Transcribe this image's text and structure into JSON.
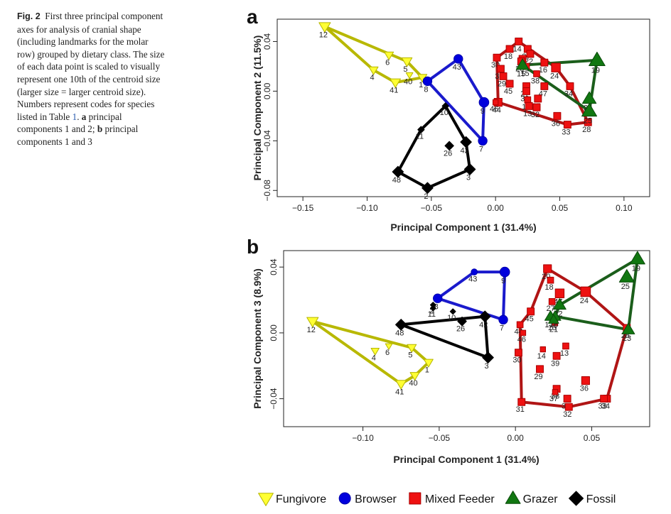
{
  "caption": {
    "fig_label": "Fig. 2",
    "text_1": "First three principal component axes for analysis of cranial shape (including landmarks for the molar row) grouped by dietary class. The size of each data point is scaled to visually represent one 10th of the centroid size (larger size = larger centroid size). Numbers represent codes for species listed in Table ",
    "table_ref": "1",
    "text_2": ". ",
    "part_a": "a",
    "part_a_text": " principal components 1 and 2; ",
    "part_b": "b",
    "part_b_text": " principal components 1 and 3"
  },
  "colors": {
    "Fungivore": "#ffff33",
    "Browser": "#0000dd",
    "Mixed Feeder": "#ee1111",
    "Grazer": "#117711",
    "Fossil": "#000000"
  },
  "outline_colors": {
    "Fungivore": "#b5b500",
    "Browser": "#0000aa",
    "Mixed Feeder": "#aa0000",
    "Grazer": "#0a4a0a",
    "Fossil": "#000000"
  },
  "hull_colors": {
    "Fungivore": "#b8b800",
    "Browser": "#1a1acc",
    "Mixed Feeder": "#b01515",
    "Grazer": "#1b5e1b",
    "Fossil": "#000000"
  },
  "legend": {
    "entries": [
      {
        "label": "Fungivore",
        "shape": "triangle-down"
      },
      {
        "label": "Browser",
        "shape": "circle"
      },
      {
        "label": "Mixed Feeder",
        "shape": "square"
      },
      {
        "label": "Grazer",
        "shape": "triangle-up"
      },
      {
        "label": "Fossil",
        "shape": "diamond"
      }
    ]
  },
  "chart_data": [
    {
      "panel": "a",
      "type": "scatter",
      "xlabel": "Principal Component 1 (31.4%)",
      "ylabel": "Principal Component 2 (11.5%)",
      "xlim": [
        -0.17,
        0.12
      ],
      "ylim": [
        -0.085,
        0.058
      ],
      "xticks": [
        -0.15,
        -0.1,
        -0.05,
        0.0,
        0.05,
        0.1
      ],
      "xtick_labels": [
        "−0.15",
        "−0.10",
        "−0.05",
        "0.00",
        "0.05",
        "0.10"
      ],
      "yticks": [
        -0.08,
        -0.04,
        0.0,
        0.04
      ],
      "ytick_labels": [
        "−0.08",
        "−0.04",
        "0.00",
        "0.04"
      ],
      "groups": [
        {
          "name": "Fungivore",
          "hull": [
            12,
            5,
            1,
            41,
            4
          ],
          "points": [
            {
              "id": 12,
              "x": -0.133,
              "y": 0.052,
              "s": 1.0
            },
            {
              "id": 5,
              "x": -0.069,
              "y": 0.024,
              "s": 0.9
            },
            {
              "id": 6,
              "x": -0.083,
              "y": 0.029,
              "s": 0.8
            },
            {
              "id": 40,
              "x": -0.067,
              "y": 0.013,
              "s": 0.6
            },
            {
              "id": 1,
              "x": -0.057,
              "y": 0.011,
              "s": 0.8
            },
            {
              "id": 4,
              "x": -0.095,
              "y": 0.017,
              "s": 0.8
            },
            {
              "id": 41,
              "x": -0.078,
              "y": 0.007,
              "s": 0.9
            }
          ]
        },
        {
          "name": "Browser",
          "hull": [
            8,
            43,
            9,
            7
          ],
          "points": [
            {
              "id": 43,
              "x": -0.029,
              "y": 0.026,
              "s": 1.0
            },
            {
              "id": 8,
              "x": -0.053,
              "y": 0.008,
              "s": 1.0
            },
            {
              "id": 9,
              "x": -0.009,
              "y": -0.009,
              "s": 1.1
            },
            {
              "id": 7,
              "x": -0.01,
              "y": -0.04,
              "s": 1.0
            }
          ]
        },
        {
          "name": "Mixed Feeder",
          "hull": [
            30,
            14,
            24,
            34,
            28,
            33,
            44
          ],
          "points": [
            {
              "id": 14,
              "x": 0.018,
              "y": 0.04,
              "s": 0.8
            },
            {
              "id": 18,
              "x": 0.011,
              "y": 0.034,
              "s": 0.8
            },
            {
              "id": 37,
              "x": 0.025,
              "y": 0.034,
              "s": 0.8
            },
            {
              "id": 22,
              "x": 0.027,
              "y": 0.03,
              "s": 0.8
            },
            {
              "id": 21,
              "x": 0.021,
              "y": 0.026,
              "s": 0.8
            },
            {
              "id": 16,
              "x": 0.038,
              "y": 0.023,
              "s": 0.8
            },
            {
              "id": 30,
              "x": 0.001,
              "y": 0.027,
              "s": 0.8
            },
            {
              "id": 20,
              "x": 0.02,
              "y": 0.024,
              "s": 0.8
            },
            {
              "id": 15,
              "x": 0.024,
              "y": 0.02,
              "s": 0.7
            },
            {
              "id": 24,
              "x": 0.047,
              "y": 0.019,
              "s": 1.0
            },
            {
              "id": 31,
              "x": 0.004,
              "y": 0.018,
              "s": 0.8
            },
            {
              "id": 29,
              "x": 0.006,
              "y": 0.012,
              "s": 0.8
            },
            {
              "id": 38,
              "x": 0.032,
              "y": 0.014,
              "s": 0.7
            },
            {
              "id": 45,
              "x": 0.011,
              "y": 0.006,
              "s": 0.8
            },
            {
              "id": 27,
              "x": 0.024,
              "y": 0.004,
              "s": 0.8
            },
            {
              "id": 47,
              "x": 0.038,
              "y": 0.004,
              "s": 0.8
            },
            {
              "id": 34,
              "x": 0.058,
              "y": 0.004,
              "s": 0.8
            },
            {
              "id": 39,
              "x": 0.024,
              "y": 0.0,
              "s": 0.8
            },
            {
              "id": 35,
              "x": 0.033,
              "y": -0.006,
              "s": 0.8
            },
            {
              "id": 17,
              "x": 0.025,
              "y": -0.007,
              "s": 0.7
            },
            {
              "id": 44,
              "x": 0.002,
              "y": -0.009,
              "s": 0.9
            },
            {
              "id": 13,
              "x": 0.026,
              "y": -0.012,
              "s": 0.8
            },
            {
              "id": 32,
              "x": 0.032,
              "y": -0.013,
              "s": 0.8
            },
            {
              "id": 36,
              "x": 0.048,
              "y": -0.02,
              "s": 0.8
            },
            {
              "id": 28,
              "x": 0.072,
              "y": -0.025,
              "s": 0.8
            },
            {
              "id": 33,
              "x": 0.056,
              "y": -0.027,
              "s": 0.8
            },
            {
              "id": 46,
              "x": 0.0,
              "y": -0.009,
              "s": 0.6
            }
          ]
        },
        {
          "name": "Grazer",
          "hull": [
            15,
            19,
            25
          ],
          "points": [
            {
              "id": 15,
              "x": 0.021,
              "y": 0.021,
              "s": 1.1
            },
            {
              "id": 19,
              "x": 0.079,
              "y": 0.025,
              "s": 1.4
            },
            {
              "id": 23,
              "x": 0.073,
              "y": -0.006,
              "s": 1.2
            },
            {
              "id": 25,
              "x": 0.073,
              "y": -0.016,
              "s": 1.3
            }
          ]
        },
        {
          "name": "Fossil",
          "hull": [
            10,
            42,
            3,
            2,
            48,
            11
          ],
          "points": [
            {
              "id": 10,
              "x": -0.039,
              "y": -0.012,
              "s": 0.6
            },
            {
              "id": 11,
              "x": -0.058,
              "y": -0.031,
              "s": 0.6
            },
            {
              "id": 26,
              "x": -0.036,
              "y": -0.044,
              "s": 0.8
            },
            {
              "id": 42,
              "x": -0.023,
              "y": -0.041,
              "s": 1.0
            },
            {
              "id": 48,
              "x": -0.076,
              "y": -0.065,
              "s": 1.0
            },
            {
              "id": 2,
              "x": -0.053,
              "y": -0.078,
              "s": 1.0
            },
            {
              "id": 3,
              "x": -0.02,
              "y": -0.063,
              "s": 1.0
            }
          ]
        }
      ]
    },
    {
      "panel": "b",
      "type": "scatter",
      "xlabel": "Principal Component 1 (31.4%)",
      "ylabel": "Principal Component 3 (8.9%)",
      "xlim": [
        -0.152,
        0.088
      ],
      "ylim": [
        -0.057,
        0.05
      ],
      "xticks": [
        -0.1,
        -0.05,
        0.0,
        0.05
      ],
      "xtick_labels": [
        "−0.10",
        "−0.05",
        "0.00",
        "0.05"
      ],
      "yticks": [
        -0.04,
        0.0,
        0.04
      ],
      "ytick_labels": [
        "−0.04",
        "0.00",
        "0.04"
      ],
      "groups": [
        {
          "name": "Fungivore",
          "hull": [
            12,
            5,
            1,
            40,
            41
          ],
          "points": [
            {
              "id": 12,
              "x": -0.133,
              "y": 0.007,
              "s": 1.0
            },
            {
              "id": 4,
              "x": -0.092,
              "y": -0.011,
              "s": 0.7
            },
            {
              "id": 6,
              "x": -0.083,
              "y": -0.008,
              "s": 0.6
            },
            {
              "id": 5,
              "x": -0.068,
              "y": -0.009,
              "s": 0.8
            },
            {
              "id": 1,
              "x": -0.057,
              "y": -0.018,
              "s": 0.8
            },
            {
              "id": 40,
              "x": -0.066,
              "y": -0.026,
              "s": 0.8
            },
            {
              "id": 41,
              "x": -0.075,
              "y": -0.031,
              "s": 0.9
            }
          ]
        },
        {
          "name": "Browser",
          "hull": [
            8,
            43,
            9,
            7
          ],
          "points": [
            {
              "id": 43,
              "x": -0.027,
              "y": 0.037,
              "s": 0.7
            },
            {
              "id": 9,
              "x": -0.007,
              "y": 0.037,
              "s": 1.1
            },
            {
              "id": 8,
              "x": -0.051,
              "y": 0.021,
              "s": 1.0
            },
            {
              "id": 7,
              "x": -0.008,
              "y": 0.008,
              "s": 1.0
            }
          ]
        },
        {
          "name": "Mixed Feeder",
          "hull": [
            20,
            24,
            28,
            34,
            32,
            31,
            44,
            45
          ],
          "points": [
            {
              "id": 20,
              "x": 0.021,
              "y": 0.039,
              "s": 0.9
            },
            {
              "id": 18,
              "x": 0.023,
              "y": 0.032,
              "s": 0.7
            },
            {
              "id": 47,
              "x": 0.029,
              "y": 0.024,
              "s": 1.0
            },
            {
              "id": 24,
              "x": 0.046,
              "y": 0.025,
              "s": 1.1
            },
            {
              "id": 27,
              "x": 0.024,
              "y": 0.019,
              "s": 0.7
            },
            {
              "id": 45,
              "x": 0.01,
              "y": 0.013,
              "s": 0.8
            },
            {
              "id": 44,
              "x": 0.003,
              "y": 0.005,
              "s": 0.7
            },
            {
              "id": 46,
              "x": 0.005,
              "y": 0.0,
              "s": 0.6
            },
            {
              "id": 21,
              "x": 0.026,
              "y": 0.006,
              "s": 0.6
            },
            {
              "id": 30,
              "x": 0.002,
              "y": -0.012,
              "s": 0.8
            },
            {
              "id": 14,
              "x": 0.018,
              "y": -0.01,
              "s": 0.6
            },
            {
              "id": 13,
              "x": 0.033,
              "y": -0.008,
              "s": 0.7
            },
            {
              "id": 39,
              "x": 0.027,
              "y": -0.014,
              "s": 0.8
            },
            {
              "id": 29,
              "x": 0.016,
              "y": -0.022,
              "s": 0.8
            },
            {
              "id": 38,
              "x": 0.027,
              "y": -0.034,
              "s": 0.8
            },
            {
              "id": 36,
              "x": 0.046,
              "y": -0.029,
              "s": 0.9
            },
            {
              "id": 37,
              "x": 0.026,
              "y": -0.036,
              "s": 0.6
            },
            {
              "id": 35,
              "x": 0.034,
              "y": -0.04,
              "s": 0.8
            },
            {
              "id": 31,
              "x": 0.004,
              "y": -0.042,
              "s": 0.8
            },
            {
              "id": 32,
              "x": 0.035,
              "y": -0.045,
              "s": 0.8
            },
            {
              "id": 34,
              "x": 0.06,
              "y": -0.04,
              "s": 0.8
            },
            {
              "id": 33,
              "x": 0.058,
              "y": -0.04,
              "s": 0.8
            },
            {
              "id": 28,
              "x": 0.073,
              "y": 0.003,
              "s": 0.8
            }
          ]
        },
        {
          "name": "Grazer",
          "hull": [
            22,
            19,
            23,
            16
          ],
          "points": [
            {
              "id": 19,
              "x": 0.08,
              "y": 0.045,
              "s": 1.3
            },
            {
              "id": 25,
              "x": 0.073,
              "y": 0.034,
              "s": 1.3
            },
            {
              "id": 22,
              "x": 0.029,
              "y": 0.017,
              "s": 1.1
            },
            {
              "id": 16,
              "x": 0.026,
              "y": 0.01,
              "s": 1.0
            },
            {
              "id": 17,
              "x": 0.023,
              "y": 0.01,
              "s": 1.0
            },
            {
              "id": 15,
              "x": 0.025,
              "y": 0.008,
              "s": 0.9
            },
            {
              "id": 23,
              "x": 0.074,
              "y": 0.002,
              "s": 1.1
            }
          ]
        },
        {
          "name": "Fossil",
          "hull": [
            48,
            8,
            42,
            3
          ],
          "points": [
            {
              "id": 2,
              "x": -0.054,
              "y": 0.017,
              "s": 0.5
            },
            {
              "id": 11,
              "x": -0.054,
              "y": 0.015,
              "s": 0.5
            },
            {
              "id": 10,
              "x": -0.041,
              "y": 0.013,
              "s": 0.5
            },
            {
              "id": 26,
              "x": -0.035,
              "y": 0.007,
              "s": 0.8
            },
            {
              "id": 42,
              "x": -0.02,
              "y": 0.01,
              "s": 1.0
            },
            {
              "id": 48,
              "x": -0.075,
              "y": 0.005,
              "s": 1.0
            },
            {
              "id": 3,
              "x": -0.018,
              "y": -0.015,
              "s": 1.0
            }
          ]
        }
      ]
    }
  ]
}
